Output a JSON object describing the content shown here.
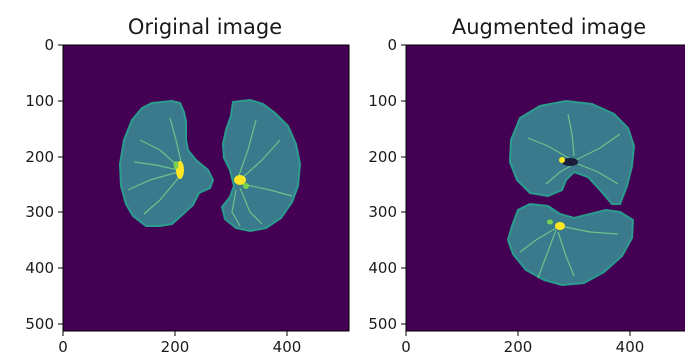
{
  "colors": {
    "background": "#440154",
    "lung_fill": "#3b7a8c",
    "lung_edge": "#2a9d8f",
    "vessel": "#7ad151",
    "vessel_bright": "#fde725",
    "axis": "#000000"
  },
  "panels": [
    {
      "title": "Original image",
      "x_ticks": [
        "0",
        "200",
        "400"
      ],
      "y_ticks": [
        "0",
        "100",
        "200",
        "300",
        "400",
        "500"
      ]
    },
    {
      "title": "Augmented image",
      "x_ticks": [
        "0",
        "200",
        "400"
      ],
      "y_ticks": [
        "0",
        "100",
        "200",
        "300",
        "400",
        "500"
      ]
    }
  ]
}
